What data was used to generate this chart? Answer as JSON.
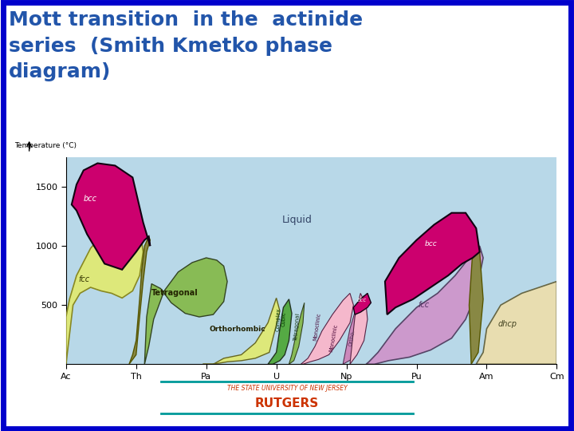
{
  "title_line1": "Mott transition  in the  actinide",
  "title_line2": "series  (Smith Kmetko phase",
  "title_line3": "diagram)",
  "title_color": "#2255aa",
  "title_fontsize": 18,
  "bg_color": "#ffffff",
  "border_color": "#0000cc",
  "border_width": 5,
  "rutgers_text": "THE STATE UNIVERSITY OF NEW JERSEY",
  "rutgers_name": "RUTGERS",
  "rutgers_color": "#cc3300",
  "rutgers_line_color": "#009999",
  "elements": [
    "Ac",
    "Th",
    "Pa",
    "U",
    "Np",
    "Pu",
    "Am",
    "Cm"
  ],
  "yticks": [
    500,
    1000,
    1500
  ],
  "ylabel": "Temperature (°C)",
  "colors": {
    "liquid": "#b8d8e8",
    "bcc": "#cc006e",
    "fcc_yellow": "#dde87a",
    "tetragonal": "#88bb55",
    "orthorhombic": "#dde87a",
    "complex_cubic": "#55aa44",
    "monoclinic1": "#f5b8cc",
    "monoclinic2": "#f5b8cc",
    "ortho_pu": "#cc88bb",
    "bcc_small": "#cc006e",
    "fcc_right": "#cc99cc",
    "dhcp": "#e8ddb0",
    "olive": "#888844",
    "dark_outline": "#222200"
  }
}
